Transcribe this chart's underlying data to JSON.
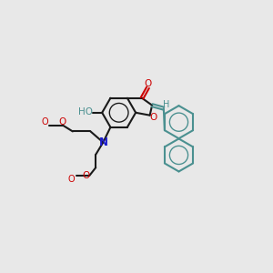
{
  "bg": "#e8e8e8",
  "bc": "#1a1a1a",
  "oc": "#cc0000",
  "nc": "#1a1acc",
  "tc": "#4a9090",
  "lw": 1.5,
  "figsize": [
    3.0,
    3.0
  ],
  "dpi": 100,
  "xlim": [
    0,
    10
  ],
  "ylim": [
    0,
    10
  ]
}
